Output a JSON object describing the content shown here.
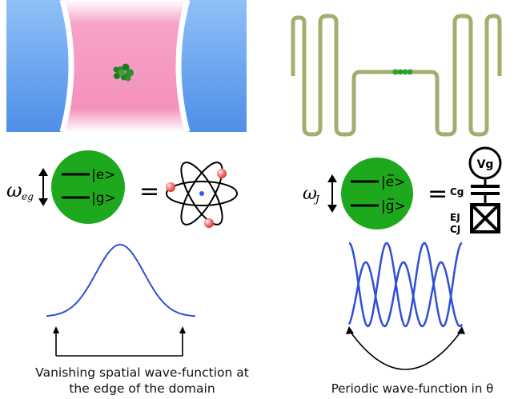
{
  "left": {
    "omega_symbol": "ω",
    "omega_sub": "eg",
    "state_excited": "|e>",
    "state_ground": "|g>",
    "equals": "=",
    "caption_line1": "Vanishing spatial wave-function at",
    "caption_line2": "the edge of the domain"
  },
  "right": {
    "omega_symbol": "ω",
    "omega_sub": "J",
    "state_excited": "|e>",
    "state_ground": "|g>",
    "equals": "=",
    "vg_label": "Vg",
    "cg_label": "Cg",
    "ej_label": "EJ",
    "cj_label": "CJ",
    "caption": "Periodic wave-function in θ"
  },
  "colors": {
    "cavity_blue": "#6aa6f2",
    "cavity_pink": "#f59ac4",
    "atom_green": "#2a8a2a",
    "qubit_green": "#1ea81e",
    "resonator": "#a3ad6e",
    "wave_blue": "#2f4fd6"
  }
}
